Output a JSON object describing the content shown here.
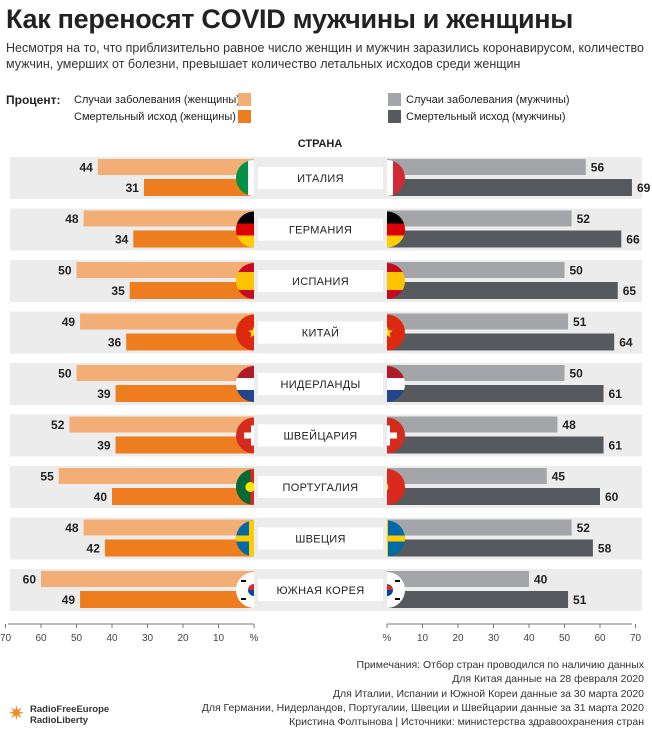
{
  "title": "Как переносят COVID мужчины и женщины",
  "subtitle": "Несмотря на то, что приблизительно равное число женщин и мужчин заразились коронавирусом, количество мужчин, умерших от болезни, превышает количество летальных исходов среди женщин",
  "legend": {
    "heading": "Процент:",
    "women_cases": "Случаи заболевания  (женщины)",
    "women_deaths": "Смертельный исход (женщины)",
    "men_cases": "Случаи заболевания (мужчины)",
    "men_deaths": "Смертельный исход (мужчины)"
  },
  "colors": {
    "women_cases": "#f2ae75",
    "women_deaths": "#ed7d1f",
    "men_cases": "#a3a5a8",
    "men_deaths": "#565a5e",
    "band": "#ececec"
  },
  "chart_data": {
    "type": "bar",
    "orientation": "horizontal-diverging",
    "center_header": "СТРАНА",
    "categories": [
      "ИТАЛИЯ",
      "ГЕРМАНИЯ",
      "ИСПАНИЯ",
      "КИТАЙ",
      "НИДЕРЛАНДЫ",
      "ШВЕЙЦАРИЯ",
      "ПОРТУГАЛИЯ",
      "ШВЕЦИЯ",
      "ЮЖНАЯ КОРЕЯ"
    ],
    "flags": [
      "italy",
      "germany",
      "spain",
      "china",
      "netherlands",
      "switzerland",
      "portugal",
      "sweden",
      "south-korea"
    ],
    "series": [
      {
        "name": "Случаи заболевания  (женщины)",
        "side": "left",
        "values": [
          44,
          48,
          50,
          49,
          50,
          52,
          55,
          48,
          60
        ]
      },
      {
        "name": "Смертельный исход (женщины)",
        "side": "left",
        "values": [
          31,
          34,
          35,
          36,
          39,
          39,
          40,
          42,
          49
        ]
      },
      {
        "name": "Случаи заболевания (мужчины)",
        "side": "right",
        "values": [
          56,
          52,
          50,
          51,
          50,
          48,
          45,
          52,
          40
        ]
      },
      {
        "name": "Смертельный исход (мужчины)",
        "side": "right",
        "values": [
          69,
          66,
          65,
          64,
          61,
          61,
          60,
          58,
          51
        ]
      }
    ],
    "xlim": [
      0,
      70
    ],
    "left_ticks": [
      "70",
      "60",
      "50",
      "40",
      "30",
      "20",
      "10",
      "%"
    ],
    "right_ticks": [
      "%",
      "10",
      "20",
      "30",
      "40",
      "50",
      "60",
      "70"
    ],
    "grid": false,
    "legend_position": "top"
  },
  "notes": [
    "Примечания: Отбор стран проводился по наличию данных",
    "Для Китая данные на 28 февраля 2020",
    "Для Италии, Испании и Южной Кореи данные за 30 марта 2020",
    "Для Германии, Нидерландов, Португалии, Швеции и Швейцарии данные за 31 марта 2020",
    "Кристина Фолтынова | Источники: министерства здравоохранения стран"
  ],
  "logo": {
    "line1": "RadioFreeEurope",
    "line2": "RadioLiberty"
  }
}
